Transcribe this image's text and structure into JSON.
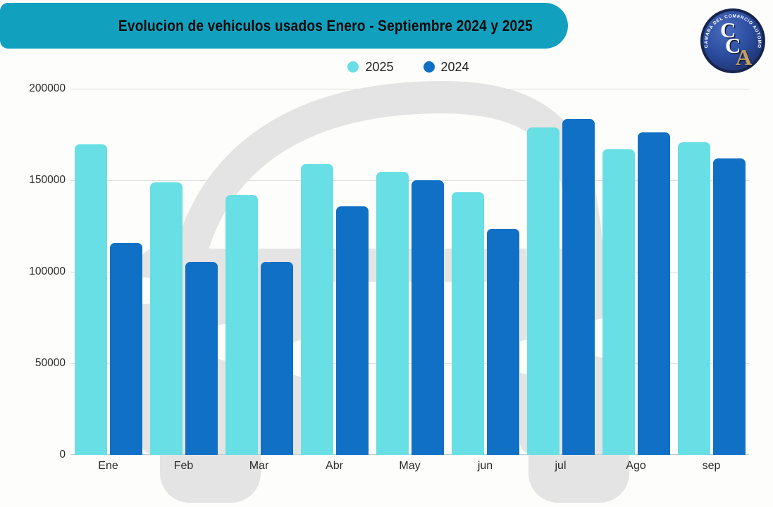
{
  "header": {
    "title": "Evolucion de vehiculos usados Enero - Septiembre 2024 y 2025"
  },
  "logo": {
    "org_name": "CAMARA DEL COMERCIO AUTOMOTOR",
    "letters": [
      "C",
      "C",
      "A"
    ]
  },
  "colors": {
    "background": "#FDFDFB",
    "banner": "#11A1BF",
    "title_text": "#0A0A0A",
    "bar_2025": "#68DFE4",
    "bar_2024": "#0F70C6",
    "gridline": "#DCDCDC",
    "axis_line": "#C8C8C8",
    "axis_text": "#2B2B2B",
    "legend_text": "#1D1D1D",
    "watermark": "#E4E4E4",
    "logo_navy": "#17254F",
    "logo_blue": "#2B4C9E",
    "logo_gold": "#C8A05E",
    "logo_text": "#FFFFFF"
  },
  "chart_data": {
    "type": "bar",
    "title": "Evolucion de vehiculos usados Enero - Septiembre 2024 y 2025",
    "categories": [
      "Ene",
      "Feb",
      "Mar",
      "Abr",
      "May",
      "jun",
      "jul",
      "Ago",
      "sep"
    ],
    "series": [
      {
        "name": "2025",
        "color": "#68DFE4",
        "values": [
          169600,
          148800,
          141900,
          158800,
          154600,
          143400,
          178800,
          166900,
          170800
        ]
      },
      {
        "name": "2024",
        "color": "#0F70C6",
        "values": [
          115800,
          105400,
          105400,
          135800,
          150000,
          123400,
          183400,
          176100,
          161900
        ]
      }
    ],
    "xlabel": "",
    "ylabel": "",
    "ylim": [
      0,
      200000
    ],
    "yticks": [
      0,
      50000,
      100000,
      150000,
      200000
    ],
    "grid": true,
    "legend_position": "top"
  }
}
